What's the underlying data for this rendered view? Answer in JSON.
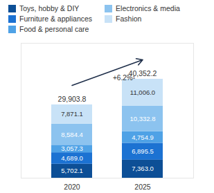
{
  "chart_data": {
    "type": "bar",
    "stacked": true,
    "data_labels": true,
    "tick_labels": "x",
    "legend": "top-left",
    "categories": [
      "2020",
      "2025"
    ],
    "series": [
      {
        "name": "Toys, hobby & DIY",
        "color": "#0d4f96",
        "values": [
          5702.1,
          7363.0
        ],
        "value_labels": [
          "5,702.1",
          "7,363.0"
        ]
      },
      {
        "name": "Furniture & appliances",
        "color": "#1c72d2",
        "values": [
          4689.0,
          6895.5
        ],
        "value_labels": [
          "4,689.0",
          "6,895.5"
        ]
      },
      {
        "name": "Food & personal care",
        "color": "#4fa2e6",
        "values": [
          3057.3,
          4754.9
        ],
        "value_labels": [
          "3,057.3",
          "4,754.9"
        ]
      },
      {
        "name": "Electronics & media",
        "color": "#8cc3ef",
        "values": [
          8584.4,
          10332.8
        ],
        "value_labels": [
          "8,584.4",
          "10,332.8"
        ]
      },
      {
        "name": "Fashion",
        "color": "#c8e2f7",
        "values": [
          7871.1,
          11006.0
        ],
        "value_labels": [
          "7,871.1",
          "11,006.0"
        ]
      }
    ],
    "totals": [
      29903.8,
      40352.2
    ],
    "total_labels": [
      "29,903.8",
      "40,352.2"
    ],
    "annotations": [
      {
        "text": "+6.2%¹"
      }
    ],
    "ylim": [
      0,
      55000
    ]
  }
}
